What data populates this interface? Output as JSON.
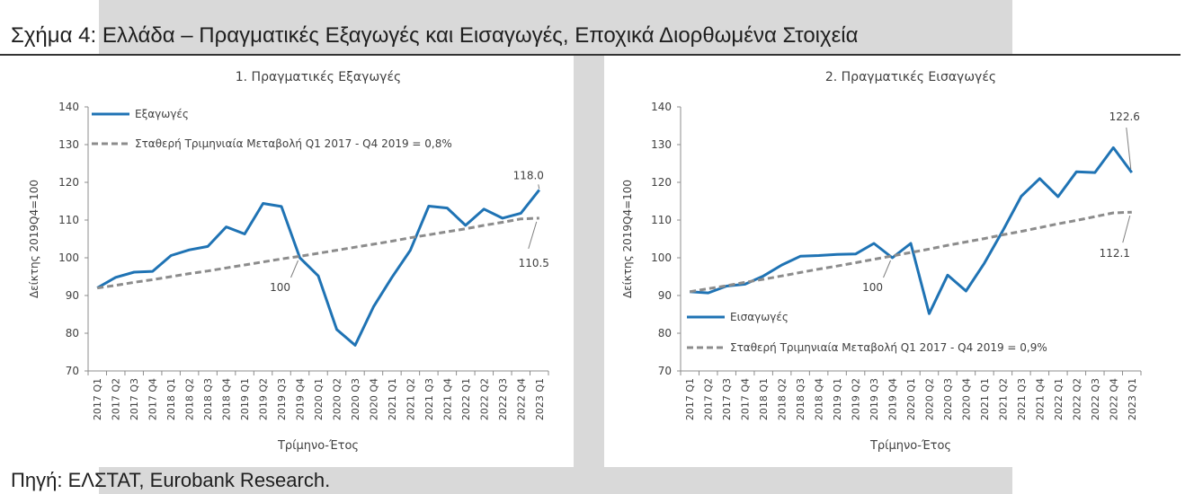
{
  "figure_title": "Σχήμα 4: Ελλάδα – Πραγματικές Εξαγωγές και Εισαγωγές, Εποχικά Διορθωμένα Στοιχεία",
  "source": "Πηγή: ΕΛΣΤΑΤ, Eurobank Research.",
  "colors": {
    "actual_line": "#1f73b4",
    "trend_line": "#8c8c8c",
    "axis": "#8c8c8c",
    "band": "#d9d9d9"
  },
  "chart_data": [
    {
      "type": "line",
      "title": "1. Πραγματικές Εξαγωγές",
      "xlabel": "Τρίμηνο-Έτος",
      "ylabel": "Δείκτης 2019Q4=100",
      "ylim": [
        70,
        140
      ],
      "yticks": [
        70,
        80,
        90,
        100,
        110,
        120,
        130,
        140
      ],
      "grid": false,
      "legend_position": "top-left",
      "categories": [
        "2017 Q1",
        "2017 Q2",
        "2017 Q3",
        "2017 Q4",
        "2018 Q1",
        "2018 Q2",
        "2018 Q3",
        "2018 Q4",
        "2019 Q1",
        "2019 Q2",
        "2019 Q3",
        "2019 Q4",
        "2020 Q1",
        "2020 Q2",
        "2020 Q3",
        "2020 Q4",
        "2021 Q1",
        "2021 Q2",
        "2021 Q3",
        "2021 Q4",
        "2022 Q1",
        "2022 Q2",
        "2022 Q3",
        "2022 Q4",
        "2023 Q1"
      ],
      "series": [
        {
          "name": "Εξαγωγές",
          "style": "solid",
          "values": [
            92,
            94.8,
            96.2,
            96.4,
            100.6,
            102.1,
            103,
            108.2,
            106.3,
            114.4,
            113.6,
            100,
            95.2,
            81,
            76.8,
            87,
            94.8,
            102,
            113.7,
            113.2,
            108.6,
            112.9,
            110.5,
            111.8,
            118
          ]
        },
        {
          "name": "Σταθερή Τριμηνιαία Μεταβολή Q1 2017 - Q4 2019 = 0,8%",
          "style": "dashed",
          "values": [
            92,
            92.7,
            93.5,
            94.2,
            95,
            95.8,
            96.5,
            97.3,
            98.1,
            98.9,
            99.7,
            100.4,
            101.2,
            102,
            102.8,
            103.6,
            104.4,
            105.3,
            106.1,
            106.9,
            107.7,
            108.6,
            109.4,
            110.3,
            110.5
          ]
        }
      ],
      "annotations": [
        {
          "text": "118.0",
          "x": "2023 Q1",
          "y": 118
        },
        {
          "text": "110.5",
          "x": "2023 Q1",
          "y": 110.5
        },
        {
          "text": "100",
          "x": "2019 Q4",
          "y": 100
        }
      ]
    },
    {
      "type": "line",
      "title": "2. Πραγματικές Εισαγωγές",
      "xlabel": "Τρίμηνο-Έτος",
      "ylabel": "Δείκτης 2019Q4=100",
      "ylim": [
        70,
        140
      ],
      "yticks": [
        70,
        80,
        90,
        100,
        110,
        120,
        130,
        140
      ],
      "grid": false,
      "legend_position": "bottom-left",
      "categories": [
        "2017 Q1",
        "2017 Q2",
        "2017 Q3",
        "2017 Q4",
        "2018 Q1",
        "2018 Q2",
        "2018 Q3",
        "2018 Q4",
        "2019 Q1",
        "2019 Q2",
        "2019 Q3",
        "2019 Q4",
        "2020 Q1",
        "2020 Q2",
        "2020 Q3",
        "2020 Q4",
        "2021 Q1",
        "2021 Q2",
        "2021 Q3",
        "2021 Q4",
        "2022 Q1",
        "2022 Q2",
        "2022 Q3",
        "2022 Q4",
        "2023 Q1"
      ],
      "series": [
        {
          "name": "Εισαγωγές",
          "style": "solid",
          "values": [
            91,
            90.7,
            92.5,
            93,
            95.2,
            98.1,
            100.4,
            100.6,
            100.9,
            101,
            103.8,
            100,
            103.8,
            85.2,
            95.4,
            91.2,
            98.6,
            107.2,
            116.3,
            121,
            116.2,
            122.8,
            122.6,
            129.2,
            122.6
          ]
        },
        {
          "name": "Σταθερή Τριμηνιαία Μεταβολή Q1 2017 - Q4 2019 = 0,9%",
          "style": "dashed",
          "values": [
            91,
            91.8,
            92.6,
            93.5,
            94.3,
            95.2,
            96.1,
            97,
            97.8,
            98.7,
            99.6,
            100.5,
            101.4,
            102.3,
            103.3,
            104.2,
            105.1,
            106.1,
            107,
            108,
            109,
            109.9,
            110.9,
            111.9,
            112.1
          ]
        }
      ],
      "annotations": [
        {
          "text": "122.6",
          "x": "2023 Q1",
          "y": 122.6
        },
        {
          "text": "112.1",
          "x": "2023 Q1",
          "y": 112.1
        },
        {
          "text": "100",
          "x": "2019 Q4",
          "y": 100
        }
      ]
    }
  ]
}
